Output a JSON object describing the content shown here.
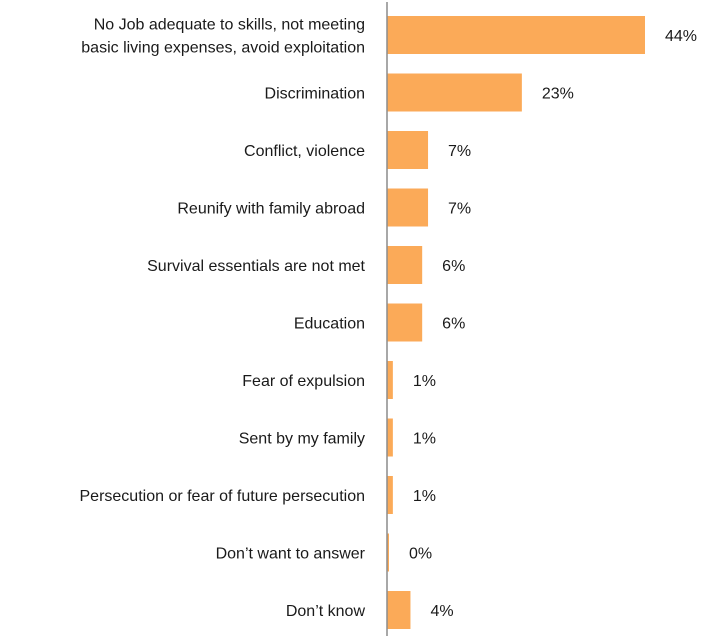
{
  "chart_data": {
    "type": "bar",
    "orientation": "horizontal",
    "categories": [
      [
        "No Job adequate to skills, not meeting",
        "basic living expenses, avoid exploitation"
      ],
      [
        "Discrimination"
      ],
      [
        "Conflict, violence"
      ],
      [
        "Reunify with family abroad"
      ],
      [
        "Survival essentials are not met"
      ],
      [
        "Education"
      ],
      [
        "Fear of expulsion"
      ],
      [
        "Sent by my family"
      ],
      [
        "Persecution or fear of future persecution"
      ],
      [
        "Don’t want to answer"
      ],
      [
        "Don’t know"
      ]
    ],
    "values": [
      44,
      23,
      7,
      7,
      6,
      6,
      1,
      1,
      1,
      0,
      4
    ],
    "value_labels": [
      "44%",
      "23%",
      "7%",
      "7%",
      "6%",
      "6%",
      "1%",
      "1%",
      "1%",
      "0%",
      "4%"
    ],
    "bar_color": "#FBAA58",
    "axis_color": "#8c8c8c",
    "xlim": [
      0,
      44
    ],
    "grid": false,
    "legend": "none"
  }
}
